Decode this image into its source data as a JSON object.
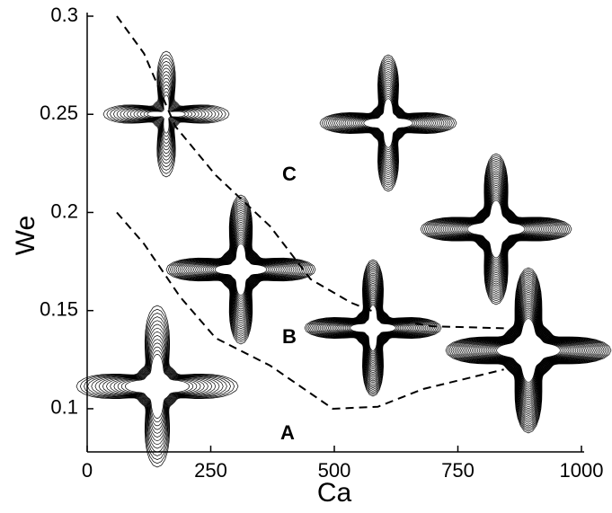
{
  "chart_data": {
    "type": "line",
    "x_label": "Ca",
    "y_label": "We",
    "xlim": [
      0,
      1000
    ],
    "ylim": [
      0.078,
      0.3
    ],
    "xticks": [
      0,
      250,
      500,
      750,
      1000
    ],
    "yticks": [
      0.1,
      0.15,
      0.2,
      0.25,
      0.3
    ],
    "series": [
      {
        "color": "#000000",
        "x": [
          60,
          115,
          178,
          260,
          370,
          452,
          534,
          625,
          698,
          843
        ],
        "values": [
          0.3,
          0.281,
          0.244,
          0.219,
          0.193,
          0.166,
          0.154,
          0.145,
          0.142,
          0.141
        ]
      },
      {
        "color": "#000000",
        "x": [
          60,
          115,
          188,
          260,
          370,
          497,
          588,
          679,
          843
        ],
        "values": [
          0.2,
          0.184,
          0.157,
          0.136,
          0.122,
          0.1,
          0.101,
          0.11,
          0.12
        ]
      }
    ],
    "annotations": [
      "A",
      "B",
      "C"
    ]
  }
}
